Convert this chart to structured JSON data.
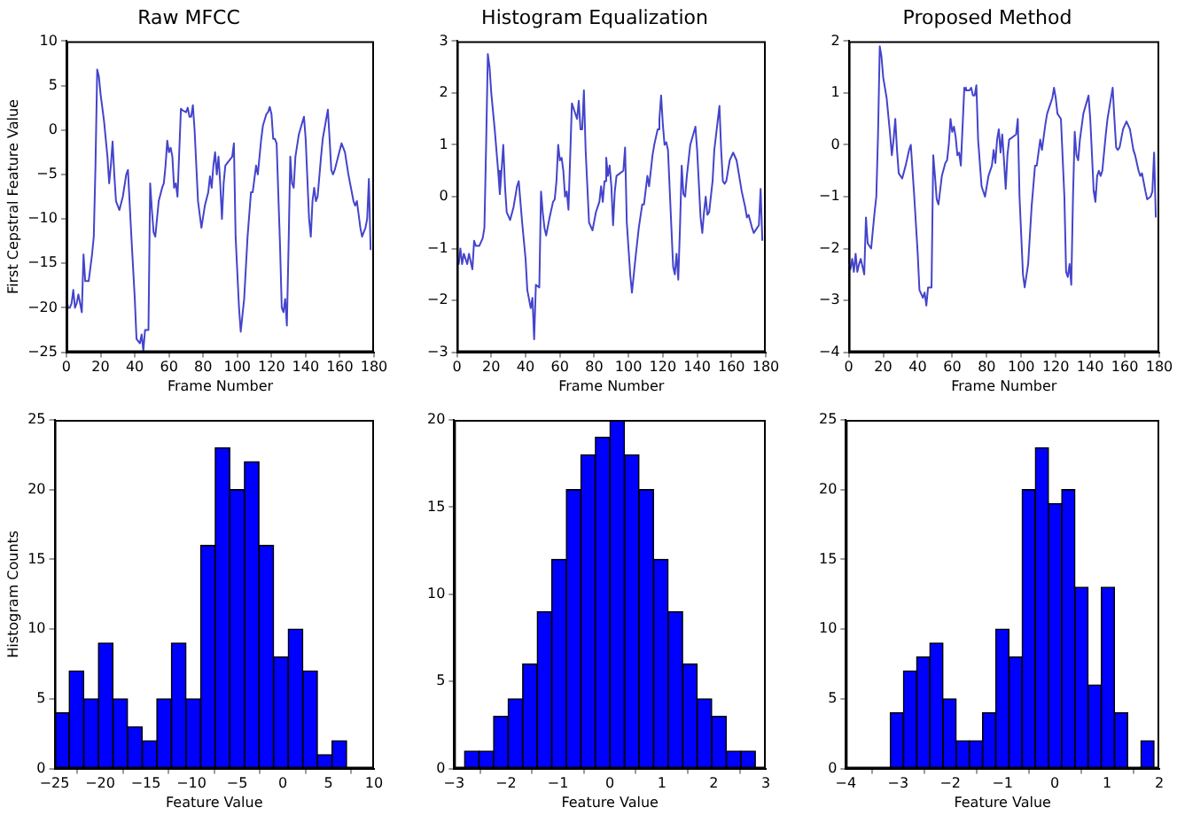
{
  "chart_data": [
    {
      "type": "line",
      "title": "Raw MFCC",
      "xlabel": "Frame Number",
      "ylabel": "First Cepstral Feature Value",
      "color": "#4444cc",
      "marker": "none",
      "grid": false,
      "xlim": [
        0,
        180
      ],
      "xticks": [
        0,
        20,
        40,
        60,
        80,
        100,
        120,
        140,
        160,
        180
      ],
      "ylim": [
        -25,
        10
      ],
      "yticks": [
        -25,
        -20,
        -15,
        -10,
        -5,
        0,
        5,
        10
      ],
      "x": [
        0,
        1,
        2,
        3,
        4,
        5,
        6,
        7,
        9,
        10,
        11,
        13,
        15,
        16,
        17,
        18,
        19,
        20,
        22,
        24,
        25,
        26,
        27,
        28,
        29,
        31,
        33,
        35,
        36,
        38,
        40,
        41,
        43,
        44,
        45,
        46,
        48,
        49,
        50,
        51,
        52,
        54,
        56,
        57,
        58,
        59,
        60,
        61,
        62,
        63,
        64,
        65,
        67,
        68,
        70,
        71,
        72,
        73,
        74,
        75,
        77,
        79,
        81,
        83,
        84,
        85,
        86,
        87,
        88,
        89,
        90,
        91,
        92,
        93,
        95,
        97,
        98,
        99,
        101,
        102,
        104,
        106,
        108,
        109,
        111,
        112,
        114,
        115,
        117,
        118,
        119,
        120,
        121,
        122,
        123,
        125,
        126,
        127,
        128,
        129,
        130,
        131,
        132,
        133,
        134,
        136,
        139,
        140,
        142,
        143,
        144,
        145,
        146,
        147,
        149,
        150,
        153,
        154,
        155,
        156,
        157,
        159,
        161,
        163,
        165,
        166,
        168,
        169,
        170,
        172,
        173,
        175,
        176,
        177,
        178
      ],
      "values": [
        -19,
        -20,
        -20,
        -19.5,
        -18,
        -20,
        -19.5,
        -18.5,
        -20.5,
        -14,
        -17,
        -17,
        -14,
        -12,
        -4,
        6.8,
        6,
        4,
        1,
        -3,
        -6,
        -4,
        -1.3,
        -5,
        -8,
        -9,
        -7.5,
        -5,
        -4.5,
        -12,
        -19,
        -23.5,
        -24,
        -23,
        -24.8,
        -22.5,
        -22.5,
        -6,
        -9,
        -11.5,
        -12,
        -8,
        -6.5,
        -6,
        -4,
        -1.2,
        -2.5,
        -2,
        -3,
        -6.5,
        -6,
        -7.5,
        2.4,
        2.2,
        2,
        2.5,
        1.5,
        1.5,
        2.8,
        0,
        -8,
        -11,
        -8.5,
        -7,
        -5.2,
        -6.5,
        -4,
        -2.5,
        -5,
        -3,
        -6,
        -10,
        -6,
        -4,
        -3.5,
        -3,
        -1.5,
        -12,
        -20,
        -22.7,
        -19,
        -12,
        -7,
        -7,
        -4,
        -5,
        -1,
        0.5,
        1.8,
        2,
        2.6,
        1.8,
        -1,
        -1,
        -1.5,
        -13,
        -20,
        -20.5,
        -19,
        -22,
        -13,
        -3,
        -6,
        -6.5,
        -3,
        -0.5,
        1.5,
        -1,
        -10,
        -12,
        -8,
        -6.5,
        -8,
        -7.5,
        -3,
        -1,
        2.3,
        -1,
        -4.5,
        -5,
        -4.5,
        -3,
        -1.5,
        -2.5,
        -5,
        -6,
        -8,
        -8.5,
        -8,
        -11,
        -12,
        -11,
        -10,
        -5.5,
        -13.5
      ]
    },
    {
      "type": "line",
      "title": "Histogram Equalization",
      "xlabel": "Frame Number",
      "color": "#4444cc",
      "marker": "none",
      "grid": false,
      "xlim": [
        0,
        180
      ],
      "xticks": [
        0,
        20,
        40,
        60,
        80,
        100,
        120,
        140,
        160,
        180
      ],
      "ylim": [
        -3,
        3
      ],
      "yticks": [
        -3,
        -2,
        -1,
        0,
        1,
        2,
        3
      ],
      "x": [
        0,
        1,
        2,
        3,
        4,
        5,
        6,
        7,
        9,
        10,
        11,
        13,
        15,
        16,
        17,
        18,
        19,
        20,
        22,
        24,
        25,
        26,
        27,
        28,
        29,
        31,
        33,
        35,
        36,
        38,
        40,
        41,
        43,
        44,
        45,
        46,
        48,
        49,
        50,
        51,
        52,
        54,
        56,
        57,
        58,
        59,
        60,
        61,
        62,
        63,
        64,
        65,
        67,
        68,
        70,
        71,
        72,
        73,
        74,
        75,
        77,
        79,
        81,
        83,
        84,
        85,
        86,
        87,
        88,
        89,
        90,
        91,
        92,
        93,
        95,
        97,
        98,
        99,
        101,
        102,
        104,
        106,
        108,
        109,
        111,
        112,
        114,
        115,
        117,
        118,
        119,
        120,
        121,
        122,
        123,
        125,
        126,
        127,
        128,
        129,
        130,
        131,
        132,
        133,
        134,
        136,
        139,
        140,
        142,
        143,
        144,
        145,
        146,
        147,
        149,
        150,
        153,
        154,
        155,
        156,
        157,
        159,
        161,
        163,
        165,
        166,
        168,
        169,
        170,
        172,
        173,
        175,
        176,
        177,
        178
      ],
      "values": [
        -1.2,
        -1.3,
        -1,
        -1.3,
        -1.1,
        -1.2,
        -1.3,
        -1.1,
        -1.4,
        -0.85,
        -0.95,
        -0.95,
        -0.8,
        -0.6,
        1,
        2.75,
        2.5,
        2,
        1.3,
        0.5,
        0.05,
        0.5,
        1,
        0.2,
        -0.3,
        -0.45,
        -0.2,
        0.2,
        0.3,
        -0.5,
        -1.2,
        -1.8,
        -2.15,
        -1.95,
        -2.75,
        -1.7,
        -1.75,
        0.1,
        -0.3,
        -0.6,
        -0.75,
        -0.4,
        -0.1,
        -0.05,
        0.3,
        1,
        0.7,
        0.75,
        0.5,
        0,
        0.1,
        -0.25,
        1.8,
        1.7,
        1.5,
        1.85,
        1.3,
        1.3,
        2.05,
        0.9,
        -0.5,
        -0.65,
        -0.3,
        -0.1,
        0.2,
        -0.1,
        0.3,
        0.75,
        0.4,
        0.6,
        0.2,
        -0.55,
        0.1,
        0.4,
        0.45,
        0.5,
        0.95,
        -0.5,
        -1.5,
        -1.85,
        -1.2,
        -0.6,
        -0.15,
        -0.15,
        0.4,
        0.2,
        0.8,
        1,
        1.3,
        1.5,
        1.95,
        1.4,
        1,
        1.05,
        0.9,
        -0.6,
        -1.35,
        -1.5,
        -1.1,
        -1.6,
        -0.6,
        0.6,
        0.05,
        0,
        0.4,
        1,
        1.35,
        0.9,
        -0.4,
        -0.7,
        -0.3,
        0,
        -0.35,
        -0.3,
        0.3,
        0.9,
        1.75,
        0.9,
        0.3,
        0.25,
        0.3,
        0.7,
        0.85,
        0.7,
        0.3,
        0.1,
        -0.2,
        -0.4,
        -0.35,
        -0.6,
        -0.7,
        -0.6,
        -0.55,
        0.15,
        -0.85
      ]
    },
    {
      "type": "line",
      "title": "Proposed Method",
      "xlabel": "Frame Number",
      "color": "#4444cc",
      "marker": "none",
      "grid": false,
      "xlim": [
        0,
        180
      ],
      "xticks": [
        0,
        20,
        40,
        60,
        80,
        100,
        120,
        140,
        160,
        180
      ],
      "ylim": [
        -4,
        2
      ],
      "yticks": [
        -4,
        -3,
        -2,
        -1,
        0,
        1,
        2
      ],
      "x": [
        0,
        1,
        2,
        3,
        4,
        5,
        6,
        7,
        9,
        10,
        11,
        13,
        15,
        16,
        17,
        18,
        19,
        20,
        22,
        24,
        25,
        26,
        27,
        28,
        29,
        31,
        33,
        35,
        36,
        38,
        40,
        41,
        43,
        44,
        45,
        46,
        48,
        49,
        50,
        51,
        52,
        54,
        56,
        57,
        58,
        59,
        60,
        61,
        62,
        63,
        64,
        65,
        67,
        68,
        70,
        71,
        72,
        73,
        74,
        75,
        77,
        79,
        81,
        83,
        84,
        85,
        86,
        87,
        88,
        89,
        90,
        91,
        92,
        93,
        95,
        97,
        98,
        99,
        101,
        102,
        104,
        106,
        108,
        109,
        111,
        112,
        114,
        115,
        117,
        118,
        119,
        120,
        121,
        122,
        123,
        125,
        126,
        127,
        128,
        129,
        130,
        131,
        132,
        133,
        134,
        136,
        139,
        140,
        142,
        143,
        144,
        145,
        146,
        147,
        149,
        150,
        153,
        154,
        155,
        156,
        157,
        159,
        161,
        163,
        165,
        166,
        168,
        169,
        170,
        172,
        173,
        175,
        176,
        177,
        178
      ],
      "values": [
        -2.3,
        -2.4,
        -2.2,
        -2.45,
        -2.1,
        -2.45,
        -2.3,
        -2.2,
        -2.5,
        -1.4,
        -1.9,
        -2,
        -1.3,
        -1,
        0.2,
        1.9,
        1.7,
        1.3,
        0.9,
        0.2,
        -0.2,
        0.1,
        0.5,
        -0.1,
        -0.55,
        -0.65,
        -0.4,
        -0.1,
        0,
        -1,
        -2.1,
        -2.8,
        -2.95,
        -2.85,
        -3.1,
        -2.75,
        -2.75,
        -0.2,
        -0.6,
        -1.05,
        -1.15,
        -0.6,
        -0.35,
        -0.3,
        0,
        0.5,
        0.25,
        0.35,
        0.15,
        -0.2,
        -0.15,
        -0.4,
        1.1,
        1.05,
        1.05,
        1.1,
        0.95,
        0.95,
        1.15,
        0.1,
        -0.8,
        -1,
        -0.6,
        -0.4,
        -0.1,
        -0.35,
        0.1,
        0.3,
        -0.15,
        0.2,
        -0.3,
        -0.85,
        -0.2,
        0.1,
        0.15,
        0.2,
        0.5,
        -1,
        -2.5,
        -2.75,
        -2.3,
        -1.2,
        -0.4,
        -0.4,
        0.1,
        -0.1,
        0.4,
        0.6,
        0.8,
        0.9,
        1.1,
        0.9,
        0.6,
        0.55,
        0.5,
        -1,
        -2.45,
        -2.55,
        -2.3,
        -2.7,
        -1,
        0.25,
        -0.2,
        -0.3,
        0.1,
        0.6,
        0.95,
        0.5,
        -0.9,
        -1.1,
        -0.6,
        -0.5,
        -0.6,
        -0.5,
        0.2,
        0.5,
        1.1,
        0.5,
        -0.05,
        -0.1,
        -0.05,
        0.3,
        0.45,
        0.3,
        -0.1,
        -0.2,
        -0.5,
        -0.6,
        -0.55,
        -0.9,
        -1.05,
        -1,
        -0.9,
        -0.15,
        -1.4
      ]
    },
    {
      "type": "histogram",
      "xlabel": "Feature Value",
      "ylabel": "Histogram Counts",
      "color": "#0000ff",
      "grid": false,
      "xlim": [
        -25,
        10
      ],
      "xticks": [
        -25,
        -20,
        -15,
        -10,
        -5,
        0,
        5,
        10
      ],
      "ylim": [
        0,
        25
      ],
      "yticks": [
        0,
        5,
        10,
        15,
        20,
        25
      ],
      "bins": [
        -25,
        -23.4,
        -21.8,
        -20.2,
        -18.6,
        -17,
        -15.4,
        -13.8,
        -12.2,
        -10.6,
        -9,
        -7.4,
        -5.8,
        -4.2,
        -2.6,
        -1,
        0.6,
        2.2,
        3.8,
        5.4,
        7
      ],
      "values": [
        4,
        7,
        5,
        9,
        5,
        3,
        2,
        5,
        9,
        5,
        16,
        23,
        20,
        22,
        16,
        8,
        10,
        7,
        1,
        2
      ]
    },
    {
      "type": "histogram",
      "xlabel": "Feature Value",
      "color": "#0000ff",
      "grid": false,
      "xlim": [
        -3,
        3
      ],
      "xticks": [
        -3,
        -2,
        -1,
        0,
        1,
        2,
        3
      ],
      "ylim": [
        0,
        20
      ],
      "yticks": [
        0,
        5,
        10,
        15,
        20
      ],
      "bins": [
        -2.8,
        -2.52,
        -2.24,
        -1.96,
        -1.68,
        -1.4,
        -1.12,
        -0.84,
        -0.56,
        -0.28,
        0,
        0.28,
        0.56,
        0.84,
        1.12,
        1.4,
        1.68,
        1.96,
        2.24,
        2.52,
        2.8
      ],
      "values": [
        1,
        1,
        3,
        4,
        6,
        9,
        12,
        16,
        18,
        19,
        20,
        18,
        16,
        12,
        9,
        6,
        4,
        3,
        1,
        1
      ]
    },
    {
      "type": "histogram",
      "xlabel": "Feature Value",
      "color": "#0000ff",
      "grid": false,
      "xlim": [
        -4,
        2
      ],
      "xticks": [
        -4,
        -3,
        -2,
        -1,
        0,
        1,
        2
      ],
      "ylim": [
        0,
        25
      ],
      "yticks": [
        0,
        5,
        10,
        15,
        20,
        25
      ],
      "bins": [
        -3.15,
        -2.898,
        -2.645,
        -2.393,
        -2.14,
        -1.888,
        -1.635,
        -1.383,
        -1.13,
        -0.878,
        -0.625,
        -0.373,
        -0.12,
        0.133,
        0.385,
        0.638,
        0.89,
        1.143,
        1.395,
        1.648,
        1.9
      ],
      "values": [
        4,
        7,
        8,
        9,
        5,
        2,
        2,
        4,
        10,
        8,
        20,
        23,
        19,
        20,
        13,
        6,
        13,
        4,
        0,
        2
      ]
    }
  ]
}
